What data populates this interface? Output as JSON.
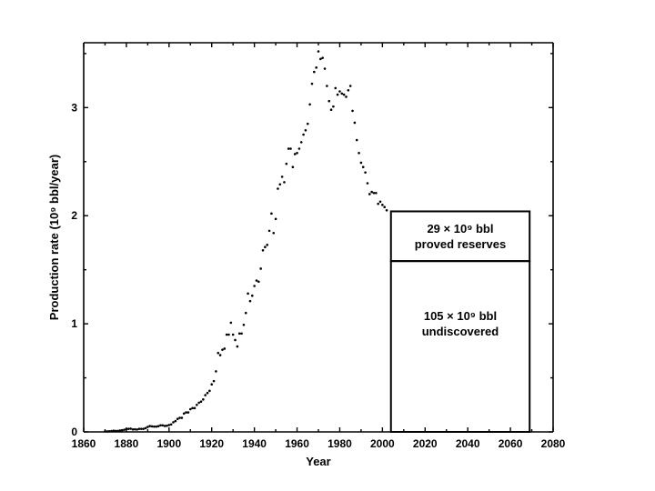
{
  "chart_data": {
    "type": "scatter",
    "xlabel": "Year",
    "ylabel": "Production rate (10⁹ bbl/year)",
    "xlim": [
      1860,
      2080
    ],
    "ylim": [
      0,
      3.6
    ],
    "x_ticks": [
      "1860",
      "1880",
      "1900",
      "1920",
      "1940",
      "1960",
      "1980",
      "2000",
      "2020",
      "2040",
      "2060",
      "2080"
    ],
    "y_ticks": [
      "0",
      "1",
      "2",
      "3"
    ],
    "series": [
      {
        "x": [
          1870,
          1871,
          1872,
          1873,
          1874,
          1875,
          1876,
          1877,
          1878,
          1879,
          1880,
          1881,
          1882,
          1883,
          1884,
          1885,
          1886,
          1887,
          1888,
          1889,
          1890,
          1891,
          1892,
          1893,
          1894,
          1895,
          1896,
          1897,
          1898,
          1899,
          1900,
          1901,
          1902,
          1903,
          1904,
          1905,
          1906,
          1907,
          1908,
          1909,
          1910,
          1911,
          1912,
          1913,
          1914,
          1915,
          1916,
          1917,
          1918,
          1919,
          1920,
          1921,
          1922,
          1923,
          1924,
          1925,
          1926,
          1927,
          1928,
          1929,
          1930,
          1931,
          1932,
          1933,
          1934,
          1935,
          1936,
          1937,
          1938,
          1939,
          1940,
          1941,
          1942,
          1943,
          1944,
          1945,
          1946,
          1947,
          1948,
          1949,
          1950,
          1951,
          1952,
          1953,
          1954,
          1955,
          1956,
          1957,
          1958,
          1959,
          1960,
          1961,
          1962,
          1963,
          1964,
          1965,
          1966,
          1967,
          1968,
          1969,
          1970,
          1971,
          1972,
          1973,
          1974,
          1975,
          1976,
          1977,
          1978,
          1979,
          1980,
          1981,
          1982,
          1983,
          1984,
          1985,
          1986,
          1987,
          1988,
          1989,
          1990,
          1991,
          1992,
          1993,
          1994,
          1995,
          1996,
          1997,
          1998,
          1999,
          2000,
          2001,
          2002
        ],
        "y": [
          0.005,
          0.005,
          0.006,
          0.008,
          0.011,
          0.009,
          0.009,
          0.013,
          0.015,
          0.02,
          0.026,
          0.028,
          0.03,
          0.023,
          0.024,
          0.022,
          0.028,
          0.028,
          0.028,
          0.035,
          0.046,
          0.054,
          0.051,
          0.049,
          0.049,
          0.053,
          0.061,
          0.061,
          0.055,
          0.057,
          0.064,
          0.069,
          0.089,
          0.1,
          0.12,
          0.13,
          0.13,
          0.17,
          0.18,
          0.18,
          0.21,
          0.22,
          0.22,
          0.25,
          0.27,
          0.28,
          0.3,
          0.34,
          0.36,
          0.38,
          0.44,
          0.47,
          0.56,
          0.73,
          0.71,
          0.76,
          0.77,
          0.9,
          0.9,
          1.01,
          0.9,
          0.85,
          0.79,
          0.91,
          0.91,
          0.99,
          1.1,
          1.28,
          1.21,
          1.26,
          1.35,
          1.4,
          1.39,
          1.51,
          1.68,
          1.71,
          1.73,
          1.86,
          2.02,
          1.84,
          1.97,
          2.25,
          2.29,
          2.36,
          2.31,
          2.48,
          2.62,
          2.62,
          2.45,
          2.57,
          2.58,
          2.62,
          2.68,
          2.75,
          2.79,
          2.85,
          3.03,
          3.22,
          3.33,
          3.37,
          3.52,
          3.45,
          3.46,
          3.36,
          3.2,
          3.06,
          2.98,
          3.01,
          3.18,
          3.12,
          3.15,
          3.13,
          3.12,
          3.1,
          3.16,
          3.2,
          2.97,
          2.86,
          2.7,
          2.58,
          2.49,
          2.45,
          2.4,
          2.3,
          2.2,
          2.22,
          2.21,
          2.21,
          2.11,
          2.13,
          2.1,
          2.08,
          2.05
        ]
      }
    ],
    "reserves_boxes": [
      {
        "name": "proved reserves",
        "x_range": [
          2004,
          2069
        ],
        "y_range": [
          1.58,
          2.04
        ],
        "label_line1": "29 × 10⁹ bbl",
        "label_line2": "proved reserves"
      },
      {
        "name": "undiscovered",
        "x_range": [
          2004,
          2069
        ],
        "y_range": [
          0,
          1.58
        ],
        "label_line1": "105 × 10⁹ bbl",
        "label_line2": "undiscovered"
      }
    ]
  }
}
